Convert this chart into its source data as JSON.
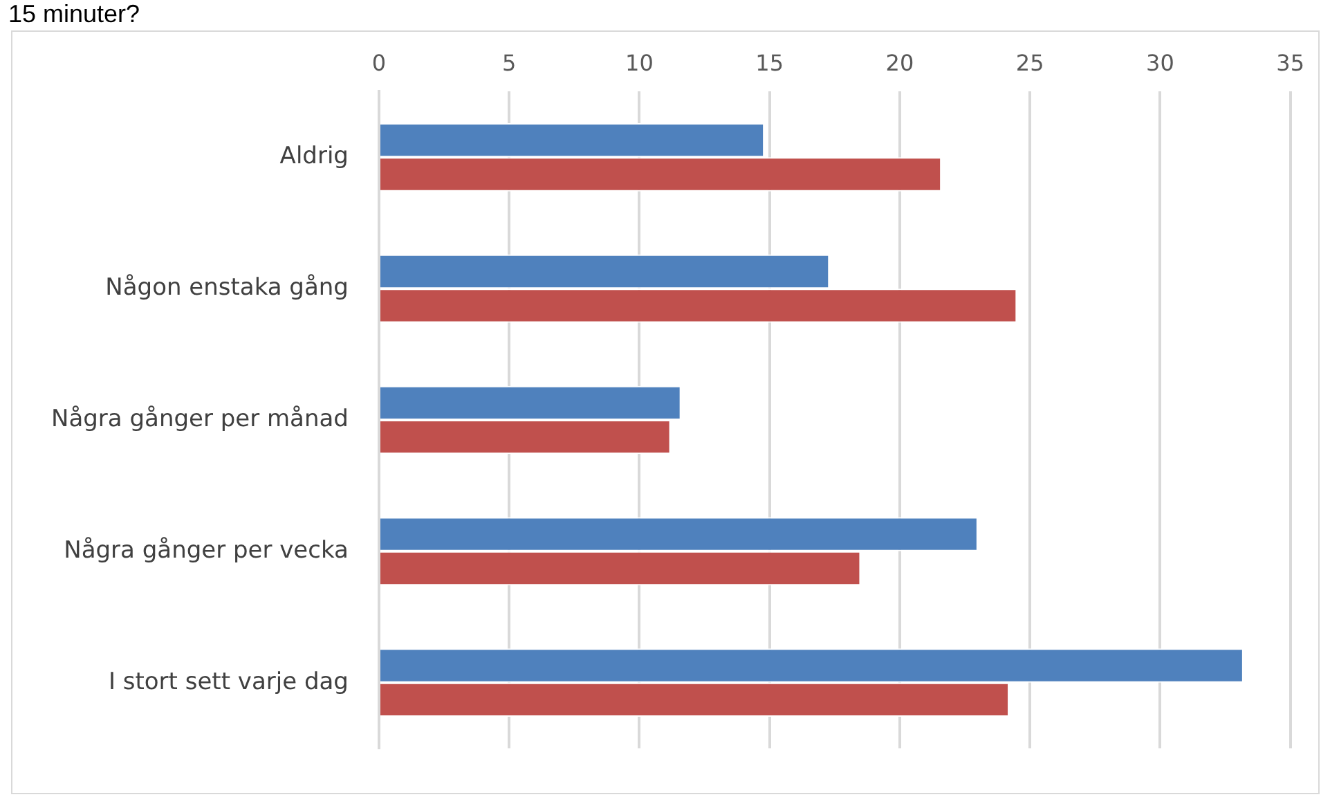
{
  "chart_data": {
    "type": "bar",
    "orientation": "horizontal",
    "title": "15 minuter?",
    "categories": [
      "Aldrig",
      "Någon enstaka gång",
      "Några gånger per månad",
      "Några gånger per vecka",
      "I stort sett varje dag"
    ],
    "series": [
      {
        "color": "#4f81bd",
        "values": [
          14.8,
          17.3,
          11.6,
          23.0,
          33.2
        ]
      },
      {
        "color": "#c0504d",
        "values": [
          21.6,
          24.5,
          11.2,
          18.5,
          24.2
        ]
      }
    ],
    "xlim": [
      0,
      35
    ],
    "xticks": [
      0,
      5,
      10,
      15,
      20,
      25,
      30,
      35
    ],
    "grid": "x",
    "legend": false
  }
}
